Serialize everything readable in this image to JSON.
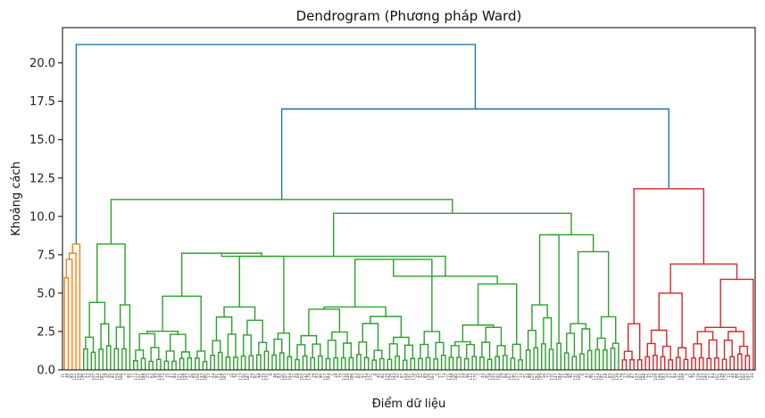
{
  "chart_data": {
    "type": "dendrogram",
    "title": "Dendrogram (Phương pháp Ward)",
    "xlabel": "Điểm dữ liệu",
    "ylabel": "Khoảng cách",
    "ylim": [
      0,
      22.3
    ],
    "yticks": [
      "0.0",
      "2.5",
      "5.0",
      "7.5",
      "10.0",
      "12.5",
      "15.0",
      "17.5",
      "20.0"
    ],
    "ytick_values": [
      0,
      2.5,
      5,
      7.5,
      10,
      12.5,
      15,
      17.5,
      20
    ],
    "grid": false,
    "leaf_count": 180,
    "colors": {
      "root": "#1f77b4",
      "orange": "#ff7f0e",
      "green": "#2ca02c",
      "red": "#d62728"
    },
    "root_merges": [
      {
        "name": "top",
        "height": 21.2,
        "color": "#1f77b4"
      },
      {
        "name": "green-red",
        "height": 17.0,
        "color": "#1f77b4"
      },
      {
        "name": "green",
        "height": 11.1,
        "color": "#1f77b4"
      }
    ],
    "clusters": [
      {
        "name": "orange",
        "color": "#ff7f0e",
        "leaves": 5,
        "merges": [
          {
            "left": 0,
            "right": 1,
            "height": 6.0
          },
          {
            "left": 2,
            "right": 3,
            "height": 7.2
          },
          {
            "left": 4,
            "right": 5,
            "height": 7.6
          },
          {
            "left": 6,
            "right": 7,
            "height": 8.2
          }
        ]
      },
      {
        "name": "green",
        "color": "#2ca02c",
        "leaves": 140,
        "subclusters": [
          {
            "name": "g1",
            "leaves": 13,
            "top": 8.2
          },
          {
            "name": "g2",
            "leaves": 20,
            "top": 4.8
          },
          {
            "name": "g3",
            "leaves": 22,
            "top": 7.4
          },
          {
            "name": "g4",
            "leaves": 40,
            "top": 7.2
          },
          {
            "name": "g5",
            "leaves": 20,
            "top": 5.6
          },
          {
            "name": "g6",
            "leaves": 10,
            "top": 8.8
          },
          {
            "name": "g7",
            "leaves": 15,
            "top": 7.7
          }
        ],
        "upper_merges": [
          {
            "name": "g2-g3",
            "height": 7.6
          },
          {
            "name": "g4-g5",
            "height": 6.1
          },
          {
            "name": "g45-g2g3",
            "height": 7.4
          },
          {
            "name": "g6-g7",
            "height": 8.8
          },
          {
            "name": "mid",
            "height": 10.2
          },
          {
            "name": "all",
            "height": 11.1
          }
        ]
      },
      {
        "name": "red",
        "color": "#d62728",
        "leaves": 35,
        "subclusters": [
          {
            "name": "r1",
            "leaves": 6,
            "top": 3.0
          },
          {
            "name": "r2",
            "leaves": 12,
            "top": 5.0
          },
          {
            "name": "r3",
            "leaves": 17,
            "top": 5.9
          }
        ],
        "upper_merges": [
          {
            "name": "r2-r3",
            "height": 6.9
          },
          {
            "name": "r1-r23",
            "height": 11.8
          }
        ]
      }
    ]
  }
}
